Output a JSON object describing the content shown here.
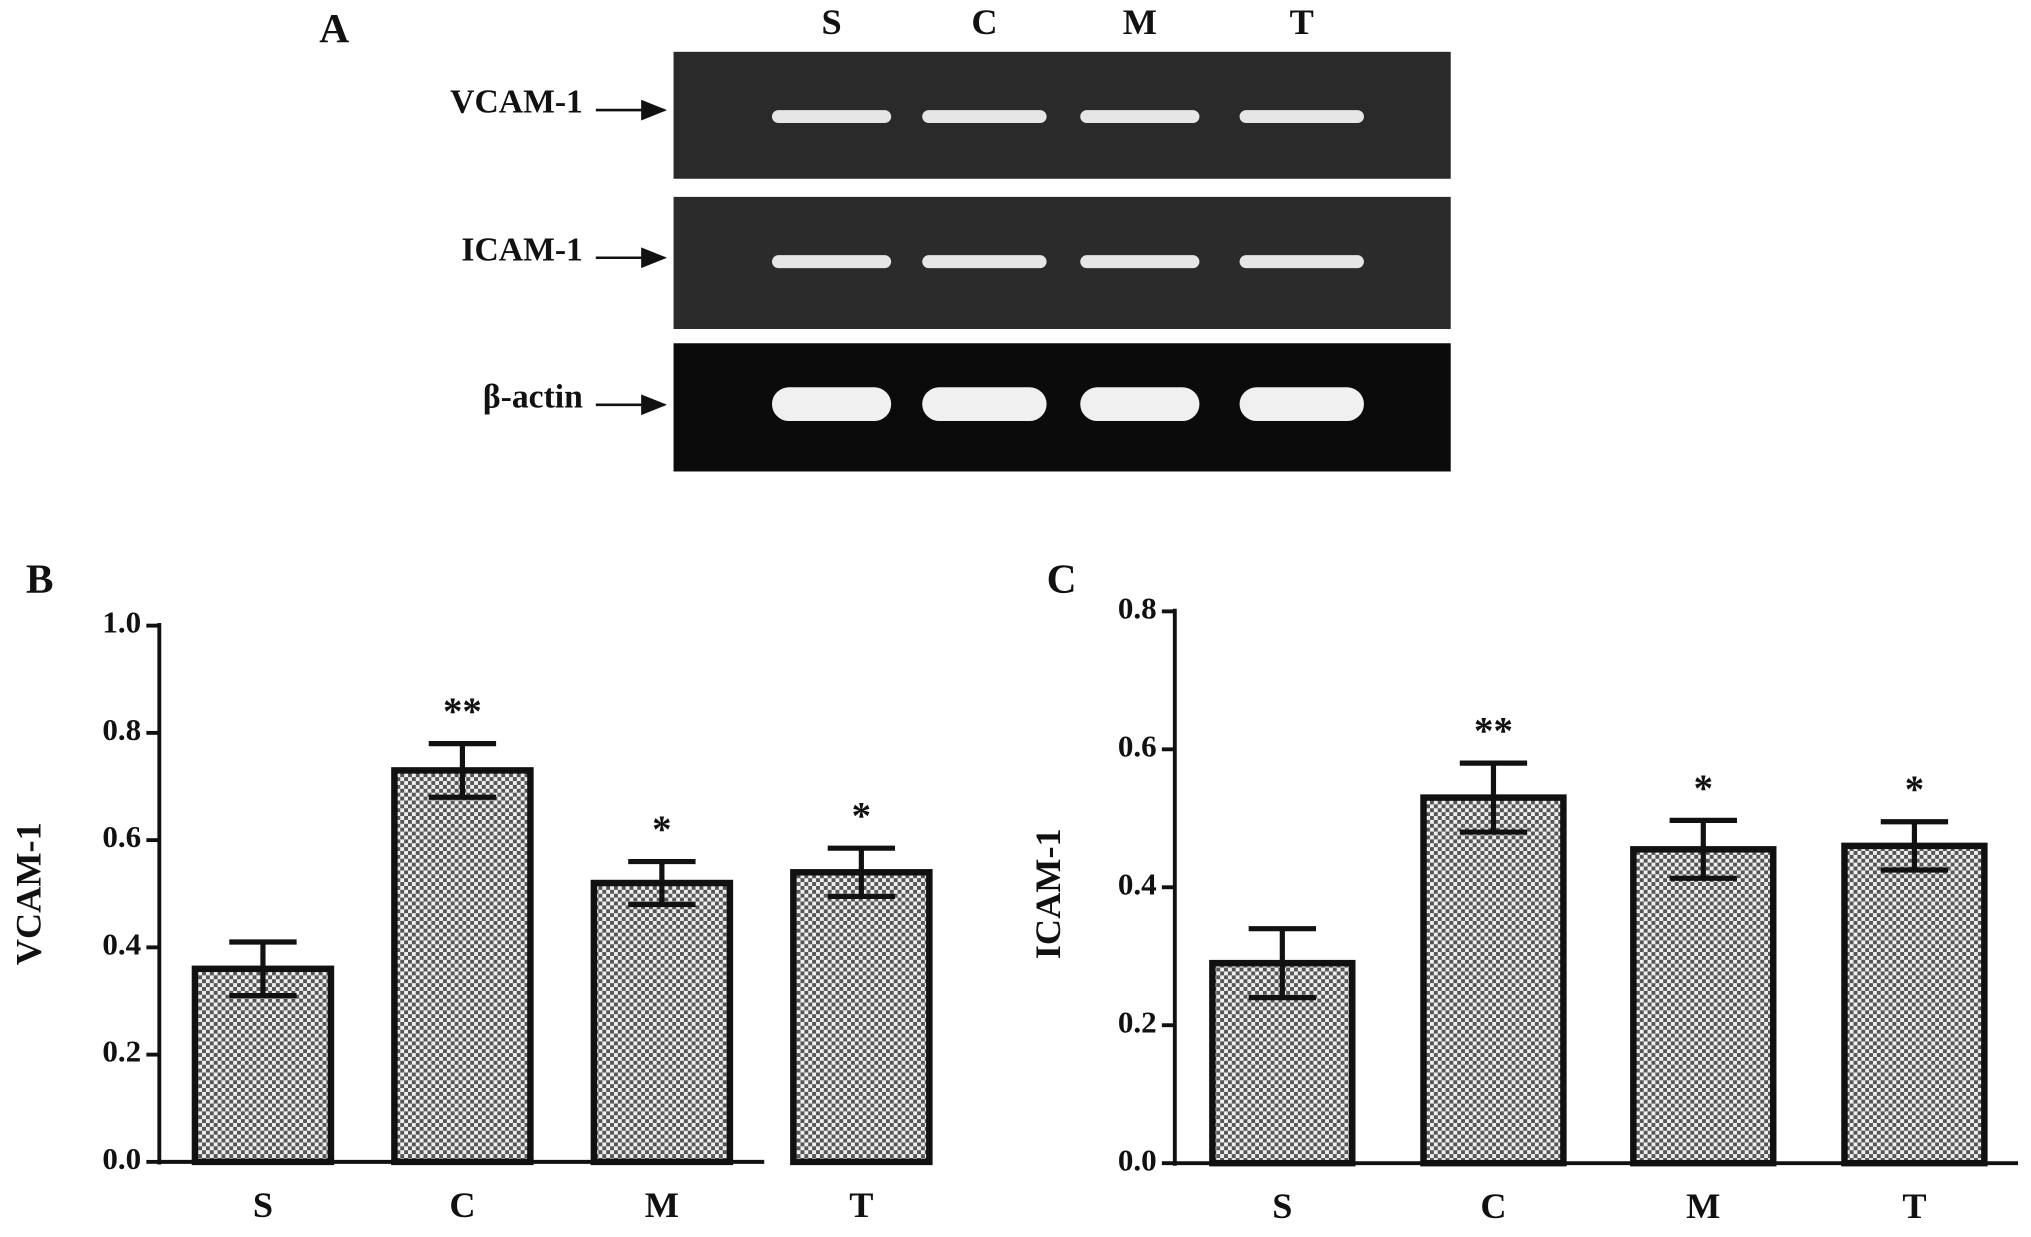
{
  "gel": {
    "panel_label": "A",
    "lanes": [
      "S",
      "C",
      "M",
      "T"
    ],
    "rows": [
      "VCAM-1",
      "ICAM-1",
      "β-actin"
    ]
  },
  "chart_data": [
    {
      "type": "bar",
      "panel_label": "B",
      "ylabel": "VCAM-1",
      "categories": [
        "S",
        "C",
        "M",
        "T"
      ],
      "values": [
        0.36,
        0.73,
        0.52,
        0.54
      ],
      "errors": [
        0.05,
        0.05,
        0.04,
        0.045
      ],
      "annotations": [
        {
          "category": "C",
          "text": "**"
        },
        {
          "category": "M",
          "text": "*"
        },
        {
          "category": "T",
          "text": "*"
        }
      ],
      "ylim": [
        0,
        1.0
      ],
      "yticks": [
        {
          "value": 0,
          "label": "0.0"
        },
        0.2,
        0.4,
        0.6,
        0.8,
        {
          "value": 1,
          "label": "1.0"
        }
      ]
    },
    {
      "type": "bar",
      "panel_label": "C",
      "ylabel": "ICAM-1",
      "categories": [
        "S",
        "C",
        "M",
        "T"
      ],
      "values": [
        0.29,
        0.53,
        0.455,
        0.46
      ],
      "errors": [
        0.05,
        0.05,
        0.042,
        0.035
      ],
      "annotations": [
        {
          "category": "C",
          "text": "**"
        },
        {
          "category": "M",
          "text": "*"
        },
        {
          "category": "T",
          "text": "*"
        }
      ],
      "ylim": [
        0,
        0.8
      ],
      "yticks": [
        {
          "value": 0,
          "label": "0.0"
        },
        0.2,
        0.4,
        0.6,
        0.8
      ]
    }
  ]
}
